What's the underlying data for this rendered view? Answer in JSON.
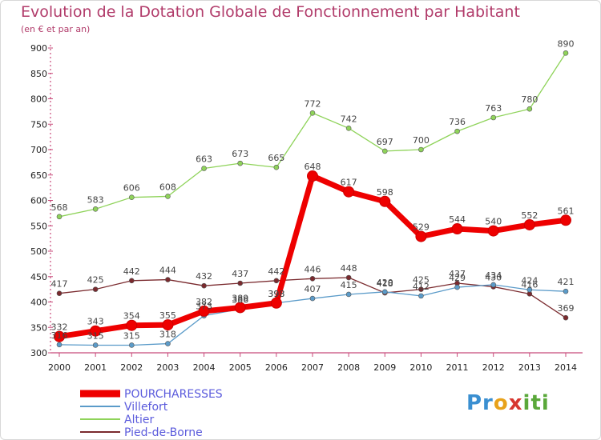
{
  "header": {
    "title": "Evolution de la Dotation Globale de Fonctionnement par Habitant",
    "subtitle": "(en € et par an)"
  },
  "logo": {
    "text": "Proxiti"
  },
  "chart_data": {
    "type": "line",
    "title": "Evolution de la Dotation Globale de Fonctionnement par Habitant",
    "subtitle": "(en € et par an)",
    "xlabel": "",
    "ylabel": "",
    "x": [
      "2000",
      "2001",
      "2002",
      "2003",
      "2004",
      "2005",
      "2006",
      "2007",
      "2008",
      "2009",
      "2010",
      "2011",
      "2012",
      "2013",
      "2014"
    ],
    "ylim": [
      300,
      900
    ],
    "yticks": [
      300,
      350,
      400,
      450,
      500,
      550,
      600,
      650,
      700,
      750,
      800,
      850,
      900
    ],
    "grid": false,
    "legend_position": "bottom-left",
    "series": [
      {
        "name": "POURCHARESSES",
        "color": "#ee0000",
        "values": [
          332,
          343,
          354,
          355,
          382,
          389,
          398,
          648,
          617,
          598,
          529,
          544,
          540,
          552,
          561
        ]
      },
      {
        "name": "Villefort",
        "color": "#5b9bc9",
        "values": [
          316,
          315,
          315,
          318,
          373,
          386,
          398,
          407,
          415,
          420,
          412,
          429,
          434,
          424,
          421
        ]
      },
      {
        "name": "Altier",
        "color": "#8fd35a",
        "values": [
          568,
          583,
          606,
          608,
          663,
          673,
          665,
          772,
          742,
          697,
          700,
          736,
          763,
          780,
          890
        ]
      },
      {
        "name": "Pied-de-Borne",
        "color": "#7a2a2e",
        "values": [
          417,
          425,
          442,
          444,
          432,
          437,
          442,
          446,
          448,
          418,
          425,
          437,
          430,
          416,
          369
        ]
      }
    ]
  }
}
